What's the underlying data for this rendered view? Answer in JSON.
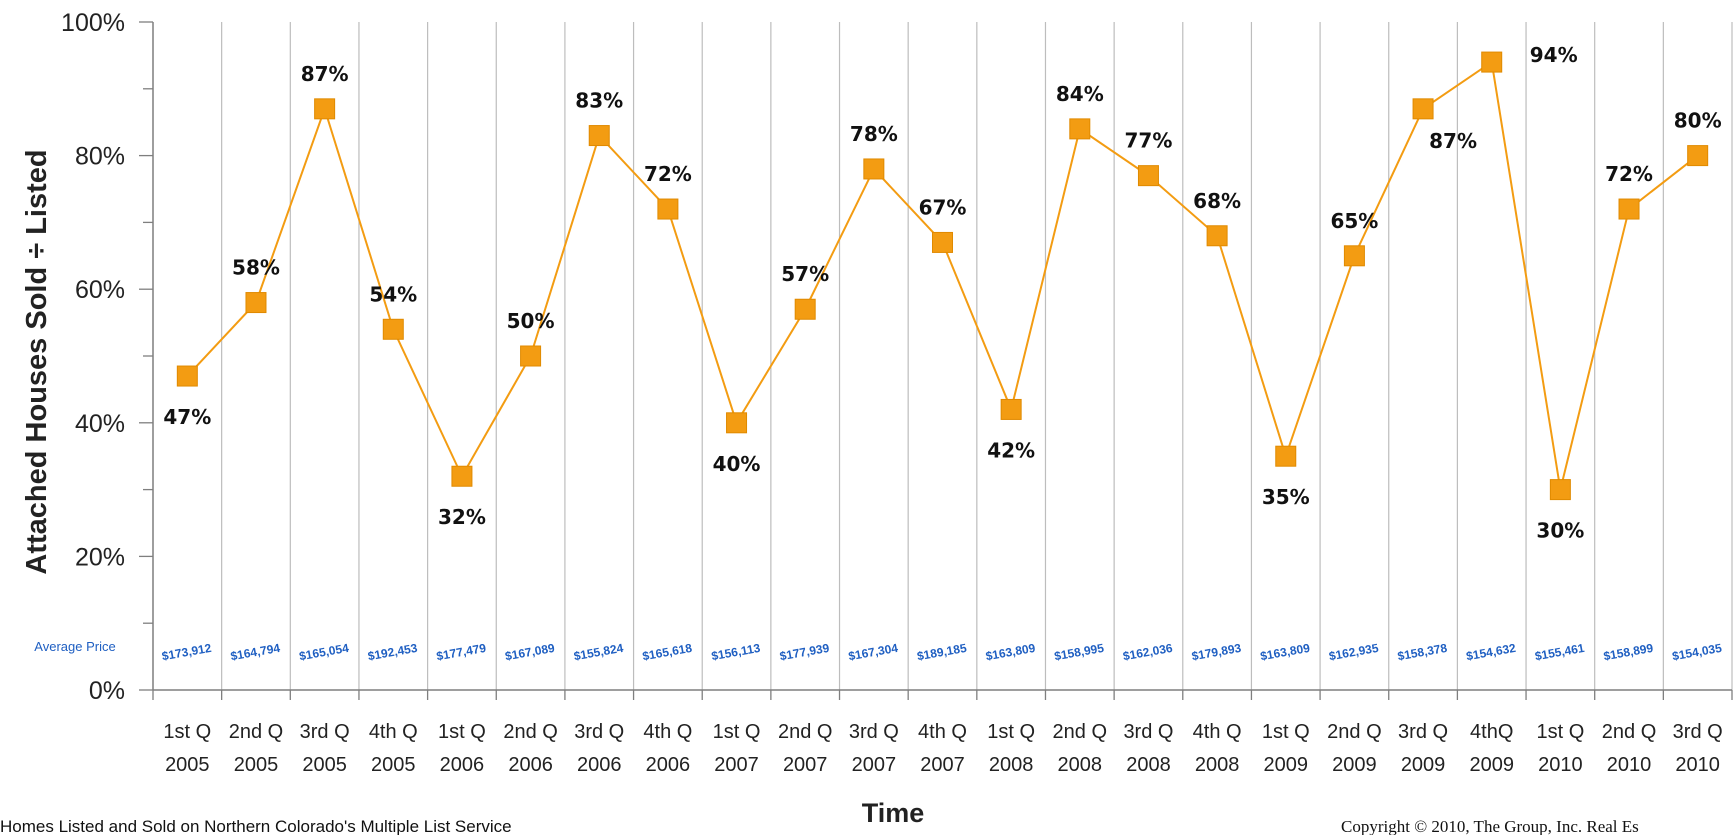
{
  "chart_data": {
    "type": "line",
    "ylabel": "Attached Houses Sold ÷ Listed",
    "xlabel": "Time",
    "ylim": [
      0,
      100
    ],
    "yticks": [
      "0%",
      "20%",
      "40%",
      "60%",
      "80%",
      "100%"
    ],
    "grid": true,
    "categories": [
      {
        "quarter": "1st Q",
        "year": "2005"
      },
      {
        "quarter": "2nd Q",
        "year": "2005"
      },
      {
        "quarter": "3rd Q",
        "year": "2005"
      },
      {
        "quarter": "4th Q",
        "year": "2005"
      },
      {
        "quarter": "1st Q",
        "year": "2006"
      },
      {
        "quarter": "2nd Q",
        "year": "2006"
      },
      {
        "quarter": "3rd Q",
        "year": "2006"
      },
      {
        "quarter": "4th Q",
        "year": "2006"
      },
      {
        "quarter": "1st Q",
        "year": "2007"
      },
      {
        "quarter": "2nd Q",
        "year": "2007"
      },
      {
        "quarter": "3rd Q",
        "year": "2007"
      },
      {
        "quarter": "4th Q",
        "year": "2007"
      },
      {
        "quarter": "1st Q",
        "year": "2008"
      },
      {
        "quarter": "2nd Q",
        "year": "2008"
      },
      {
        "quarter": "3rd Q",
        "year": "2008"
      },
      {
        "quarter": "4th Q",
        "year": "2008"
      },
      {
        "quarter": "1st Q",
        "year": "2009"
      },
      {
        "quarter": "2nd Q",
        "year": "2009"
      },
      {
        "quarter": "3rd Q",
        "year": "2009"
      },
      {
        "quarter": "4thQ",
        "year": "2009"
      },
      {
        "quarter": "1st Q",
        "year": "2010"
      },
      {
        "quarter": "2nd Q",
        "year": "2010"
      },
      {
        "quarter": "3rd Q",
        "year": "2010"
      }
    ],
    "series": [
      {
        "values": [
          47,
          58,
          87,
          54,
          32,
          50,
          83,
          72,
          40,
          57,
          78,
          67,
          42,
          84,
          77,
          68,
          35,
          65,
          87,
          94,
          30,
          72,
          80
        ],
        "labels": [
          "47%",
          "58%",
          "87%",
          "54%",
          "32%",
          "50%",
          "83%",
          "72%",
          "40%",
          "57%",
          "78%",
          "67%",
          "42%",
          "84%",
          "77%",
          "68%",
          "35%",
          "65%",
          "87%",
          "94%",
          "30%",
          "72%",
          "80%"
        ],
        "color": "#f39c12",
        "marker": "square"
      }
    ],
    "average_price_title": "Average Price",
    "average_prices": [
      "$173,912",
      "$164,794",
      "$165,054",
      "$192,453",
      "$177,479",
      "$167,089",
      "$155,824",
      "$165,618",
      "$156,113",
      "$177,939",
      "$167,304",
      "$189,185",
      "$163,809",
      "$158,995",
      "$162,036",
      "$179,893",
      "$163,809",
      "$162,935",
      "$158,378",
      "$154,632",
      "$155,461",
      "$158,899",
      "$154,035"
    ],
    "price_color": "#1f5fc2"
  },
  "footer": {
    "source": "Homes Listed and Sold on Northern Colorado's Multiple List Service",
    "copyright": "Copyright © 2010, The Group, Inc. Real Es"
  }
}
